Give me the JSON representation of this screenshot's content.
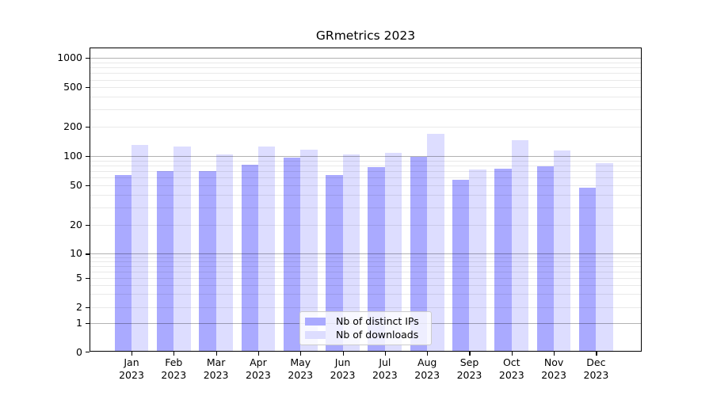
{
  "title": "GRmetrics 2023",
  "chart_data": {
    "type": "bar",
    "title": "GRmetrics 2023",
    "categories": [
      "Jan",
      "Feb",
      "Mar",
      "Apr",
      "May",
      "Jun",
      "Jul",
      "Aug",
      "Sep",
      "Oct",
      "Nov",
      "Dec"
    ],
    "category_year": "2023",
    "series": [
      {
        "name": "Nb of distinct IPs",
        "color": "#aaaaff",
        "values": [
          61,
          67,
          67,
          78,
          92,
          62,
          74,
          95,
          55,
          72,
          75,
          46
        ]
      },
      {
        "name": "Nb of downloads",
        "color": "#ddddff",
        "values": [
          125,
          120,
          100,
          121,
          113,
          101,
          104,
          162,
          70,
          140,
          111,
          82
        ]
      }
    ],
    "y_axis": {
      "scale": "symlog",
      "ylim": [
        0,
        1260
      ],
      "ticks": [
        {
          "v": 0,
          "f": 0.0
        },
        {
          "v": 1,
          "f": 0.0956
        },
        {
          "v": 2,
          "f": 0.1492
        },
        {
          "v": 5,
          "f": 0.2448
        },
        {
          "v": 10,
          "f": 0.3247
        },
        {
          "v": 20,
          "f": 0.42
        },
        {
          "v": 50,
          "f": 0.5495
        },
        {
          "v": 100,
          "f": 0.6458
        },
        {
          "v": 200,
          "f": 0.7414
        },
        {
          "v": 500,
          "f": 0.8716
        },
        {
          "v": 1000,
          "f": 0.968
        }
      ],
      "major_grid_values": [
        1,
        10,
        100,
        1000
      ],
      "minor_grid_values": [
        3,
        4,
        6,
        7,
        8,
        9,
        30,
        40,
        60,
        70,
        80,
        90,
        300,
        400,
        600,
        700,
        800,
        900
      ]
    },
    "grid": true,
    "legend_position": "lower center"
  },
  "colors": {
    "bar_ips": "#aaaaff",
    "bar_downloads": "#ddddff",
    "grid_major": "rgba(0,0,0,0.30)",
    "grid_minor": "rgba(0,0,0,0.085)",
    "axis": "#000000",
    "legend_border": "#cccccc",
    "legend_bg": "rgba(255,255,255,0.8)",
    "text": "#000000"
  }
}
